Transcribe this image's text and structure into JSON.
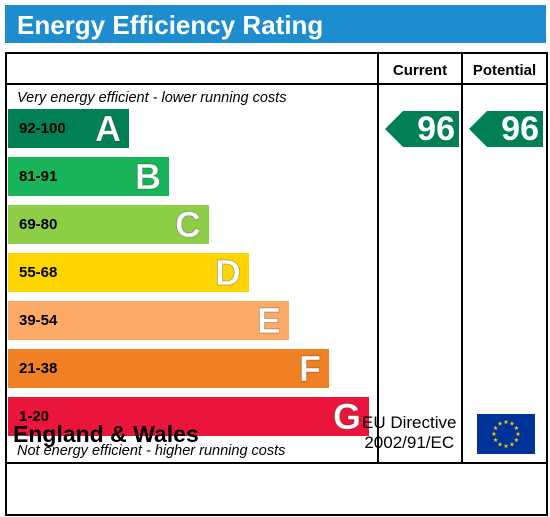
{
  "title": "Energy Efficiency Rating",
  "columns": {
    "current": "Current",
    "potential": "Potential"
  },
  "top_note": "Very energy efficient - lower running costs",
  "bottom_note": "Not energy efficient - higher running costs",
  "bands": [
    {
      "range": "92-100",
      "letter": "A",
      "color": "#008054"
    },
    {
      "range": "81-91",
      "letter": "B",
      "color": "#19B459"
    },
    {
      "range": "69-80",
      "letter": "C",
      "color": "#8DCE46"
    },
    {
      "range": "55-68",
      "letter": "D",
      "color": "#FFD500"
    },
    {
      "range": "39-54",
      "letter": "E",
      "color": "#FCAA65"
    },
    {
      "range": "21-38",
      "letter": "F",
      "color": "#EF8023"
    },
    {
      "range": "1-20",
      "letter": "G",
      "color": "#E9153B"
    }
  ],
  "current_rating": {
    "value": "96",
    "band": "A",
    "color": "#008054"
  },
  "potential_rating": {
    "value": "96",
    "band": "A",
    "color": "#008054"
  },
  "footer": {
    "region": "England & Wales",
    "directive_line1": "EU Directive",
    "directive_line2": "2002/91/EC"
  },
  "colors": {
    "title_bar": "#1E8DD0",
    "eu_flag_blue": "#003399",
    "eu_flag_stars": "#FFCC00"
  },
  "icons": {
    "eu_flag": "eu-flag-icon"
  }
}
